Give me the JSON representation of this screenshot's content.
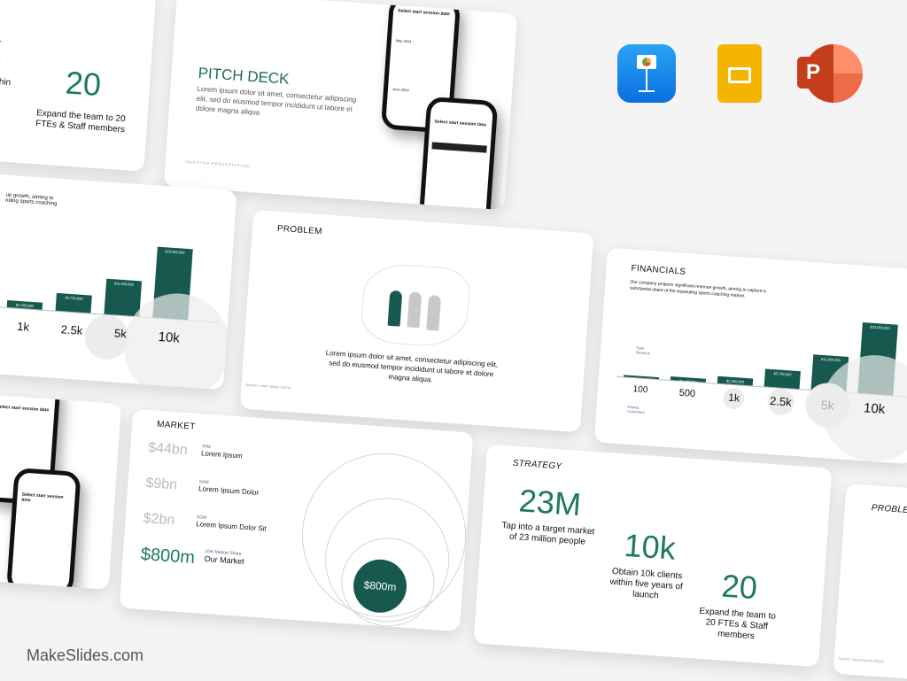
{
  "strategy_partial": {
    "stat": "k",
    "stat2": "20",
    "desc1": "s within\nnch",
    "desc2": "Expand the team to 20 FTEs & Staff members"
  },
  "pitch": {
    "title": "PITCH DECK",
    "body": "Lorem ipsum dolor sit amet, consectetur adipiscing elit, sed do eiusmod tempor incididunt ut labore et dolore magna aliqua",
    "footer": "INVESTOR PRESENTATION",
    "phone1_title": "Select start session date",
    "phone1_month1": "May 2024",
    "phone1_month2": "June 2024",
    "phone2_title": "Select start session time"
  },
  "financials_left": {
    "subtitle": "ue growth, aiming to\nnding sports coaching",
    "bars": [
      {
        "label": "$2,300,000",
        "cat": "1k"
      },
      {
        "label": "$5,750,000",
        "cat": "2.5k"
      },
      {
        "label": "$11,500,000",
        "cat": "5k"
      },
      {
        "label": "$23,000,000",
        "cat": "10k"
      }
    ]
  },
  "problem": {
    "title": "PROBLEM",
    "body": "Lorem ipsum dolor sit amet, consectetur adipiscing elit, sed do eiusmod tempor incididunt ut labore et dolore magna aliqua.",
    "source": "Source: Lorem ipsum (2024)",
    "accent": "#17594f"
  },
  "financials": {
    "title": "FINANCIALS",
    "subtitle": "Our company projects significant revenue growth, aiming to capture a substantial share of the expanding sports coaching market.",
    "revenue_label": "Total Revenue",
    "customers_label": "Paying Customers",
    "bars": [
      {
        "label": "",
        "cat": "100",
        "value": 0.23
      },
      {
        "label": "$1,150,000",
        "cat": "500",
        "value": 1.15
      },
      {
        "label": "$2,300,000",
        "cat": "1k",
        "value": 2.3
      },
      {
        "label": "$5,750,000",
        "cat": "2.5k",
        "value": 5.75
      },
      {
        "label": "$11,500,000",
        "cat": "5k",
        "value": 11.5
      },
      {
        "label": "$23,000,000",
        "cat": "10k",
        "value": 23
      }
    ]
  },
  "phone_partial": {
    "title": "Select start session date",
    "title2": "Select start session time"
  },
  "market": {
    "title": "MARKET",
    "rows": [
      {
        "value": "$44bn",
        "tag": "TAM",
        "label": "Lorem Ipsum"
      },
      {
        "value": "$9bn",
        "tag": "SAM",
        "label": "Lorem Ipsum Dolor"
      },
      {
        "value": "$2bn",
        "tag": "SOM",
        "label": "Lorem Ipsum Dolor Sit"
      },
      {
        "value": "$800m",
        "tag": "10% Market Share",
        "label": "Our Market"
      }
    ],
    "circle_label": "$800m"
  },
  "strategy": {
    "title": "STRATEGY",
    "stats": [
      {
        "value": "23M",
        "desc": "Tap into a target market of 23 million people"
      },
      {
        "value": "10k",
        "desc": "Obtain 10k clients within five years of launch"
      },
      {
        "value": "20",
        "desc": "Expand the team to 20 FTEs & Staff members"
      }
    ]
  },
  "problem_partial": {
    "title": "PROBLEM",
    "source": "Source: Lorem Ipsum (2024)"
  },
  "apps": [
    {
      "name": "Keynote",
      "icon": "keynote-icon"
    },
    {
      "name": "Google Slides",
      "icon": "google-slides-icon"
    },
    {
      "name": "PowerPoint",
      "icon": "powerpoint-icon"
    }
  ],
  "watermark": "MakeSlides.com",
  "colors": {
    "brand_green": "#17594f",
    "stat_green": "#1d7a5c"
  }
}
